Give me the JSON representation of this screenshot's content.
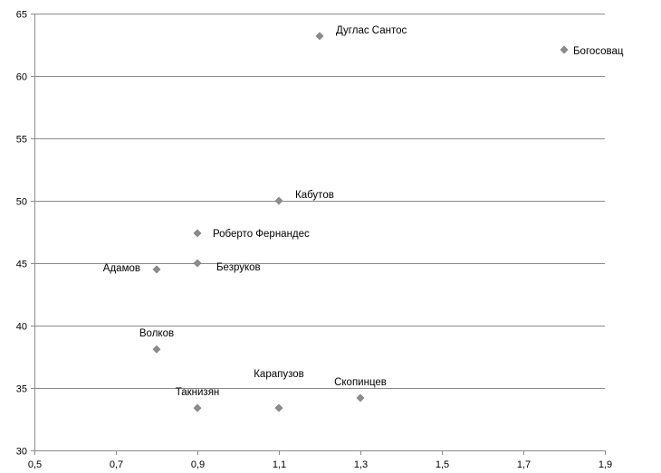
{
  "chart_data": {
    "type": "scatter",
    "title": "",
    "xlabel": "",
    "ylabel": "",
    "xlim": [
      0.5,
      1.9
    ],
    "ylim": [
      30,
      65
    ],
    "x_ticks": [
      "0,5",
      "0,7",
      "0,9",
      "1,1",
      "1,3",
      "1,5",
      "1,7",
      "1,9"
    ],
    "y_ticks": [
      "30",
      "35",
      "40",
      "45",
      "50",
      "55",
      "60",
      "65"
    ],
    "grid": "horizontal",
    "marker_color": "#8c8c8c",
    "points": [
      {
        "label": "Дуглас Сантос",
        "x": 1.2,
        "y": 63.2,
        "label_pos": "right-up"
      },
      {
        "label": "Богосовац",
        "x": 1.8,
        "y": 62.1,
        "label_pos": "right-down"
      },
      {
        "label": "Кабутов",
        "x": 1.1,
        "y": 50.0,
        "label_pos": "right-up"
      },
      {
        "label": "Роберто Фернандес",
        "x": 0.9,
        "y": 47.4,
        "label_pos": "right"
      },
      {
        "label": "Безруков",
        "x": 0.9,
        "y": 45.0,
        "label_pos": "right-down"
      },
      {
        "label": "Адамов",
        "x": 0.8,
        "y": 44.5,
        "label_pos": "left"
      },
      {
        "label": "Волков",
        "x": 0.8,
        "y": 38.1,
        "label_pos": "above"
      },
      {
        "label": "Такнизян",
        "x": 0.9,
        "y": 33.4,
        "label_pos": "above"
      },
      {
        "label": "Карапузов",
        "x": 1.1,
        "y": 33.4,
        "label_pos": "above-high"
      },
      {
        "label": "Скопинцев",
        "x": 1.3,
        "y": 34.2,
        "label_pos": "above"
      }
    ]
  }
}
